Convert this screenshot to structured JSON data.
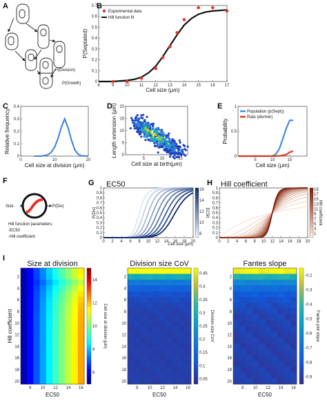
{
  "panels": {
    "A": {
      "label": "A",
      "division_label": "P(Division)",
      "growth_label": "P(Growth)"
    },
    "B": {
      "label": "B"
    },
    "C": {
      "label": "C"
    },
    "D": {
      "label": "D"
    },
    "E": {
      "label": "E"
    },
    "F": {
      "label": "F",
      "input": "Size",
      "output": "P(Div)",
      "params_title": "Hill function parameters:",
      "param1": "-EC50",
      "param2": "-Hill coefficient"
    },
    "G": {
      "label": "G"
    },
    "H": {
      "label": "H"
    },
    "I": {
      "label": "I"
    }
  },
  "colors": {
    "experimental": "#e8332a",
    "fit": "#111111",
    "gaussian": "#3b7ddd",
    "population": "#3b8fe0",
    "rate": "#d93a1b",
    "ec50_dark": "#0b2a6e",
    "hill_dark": "#7a1d08"
  },
  "chart_data": [
    {
      "id": "B",
      "type": "scatter",
      "xlabel": "Cell size (μm)",
      "ylabel": "P(Septated)",
      "xlim": [
        8,
        17
      ],
      "ylim": [
        0,
        0.7
      ],
      "xticks": [
        "8",
        "9",
        "10",
        "11",
        "12",
        "13",
        "14",
        "15",
        "16",
        "17"
      ],
      "yticks": [
        "0",
        "0.1",
        "0.2",
        "0.3",
        "0.4",
        "0.5",
        "0.6",
        "0.7"
      ],
      "legend_position": "top-left",
      "series": [
        {
          "name": "Experimental data",
          "x": [
            9,
            10,
            11,
            12,
            12.5,
            13,
            13.5,
            14,
            15,
            16,
            17
          ],
          "y": [
            0.0,
            0.0,
            0.03,
            0.12,
            0.22,
            0.32,
            0.45,
            0.57,
            0.68,
            0.68,
            0.65
          ]
        },
        {
          "name": "Hill function fit",
          "x": [
            8,
            9,
            10,
            10.5,
            11,
            11.5,
            12,
            12.5,
            13,
            13.5,
            14,
            14.5,
            15,
            15.5,
            16,
            17
          ],
          "y": [
            0,
            0.0,
            0.01,
            0.02,
            0.04,
            0.08,
            0.14,
            0.23,
            0.33,
            0.43,
            0.52,
            0.58,
            0.62,
            0.64,
            0.65,
            0.66
          ]
        }
      ]
    },
    {
      "id": "C",
      "type": "line",
      "xlabel": "Cell size at division (μm)",
      "ylabel": "Relative frequency",
      "xlim": [
        0,
        20
      ],
      "ylim": [
        0,
        0.4
      ],
      "xticks": [
        "0",
        "10",
        "20"
      ],
      "yticks": [
        "0",
        "0.1",
        "0.2",
        "0.3",
        "0.4"
      ],
      "series": [
        {
          "x": [
            4,
            6,
            8,
            9,
            10,
            11,
            12,
            13,
            14,
            15,
            16,
            17,
            18,
            20
          ],
          "y": [
            0,
            0,
            0.01,
            0.03,
            0.07,
            0.14,
            0.23,
            0.3,
            0.23,
            0.13,
            0.05,
            0.015,
            0.003,
            0
          ]
        }
      ]
    },
    {
      "id": "D",
      "type": "scatter",
      "xlabel": "Cell size at birth(μm)",
      "ylabel": "Length extension (μm)",
      "xlim": [
        0,
        17
      ],
      "ylim": [
        0,
        20
      ],
      "xticks": [
        "5",
        "10",
        "15"
      ],
      "yticks": [
        "0",
        "5",
        "10",
        "15",
        "20"
      ],
      "series": [
        {
          "x": [
            3,
            4,
            5,
            6,
            7,
            8,
            9,
            10,
            11,
            12,
            13,
            14,
            15
          ],
          "y": [
            14,
            12,
            11,
            10,
            9.5,
            8,
            7,
            6,
            5,
            4,
            3,
            2,
            1.5
          ]
        }
      ]
    },
    {
      "id": "E",
      "type": "line",
      "xlabel": "Cell size (μm)",
      "ylabel": "Probability",
      "xlim": [
        0,
        20
      ],
      "ylim": [
        0,
        1
      ],
      "xticks": [
        "5",
        "10",
        "15"
      ],
      "yticks": [
        "0",
        "0.5",
        "1"
      ],
      "legend_position": "top-left",
      "series": [
        {
          "name": "Population (p(Sept))",
          "x": [
            0,
            10,
            11,
            12,
            13,
            14,
            15,
            16
          ],
          "y": [
            0,
            0.0,
            0.04,
            0.15,
            0.35,
            0.56,
            0.72,
            0.72
          ]
        },
        {
          "name": "Rate (div/min)",
          "x": [
            0,
            10,
            12,
            13,
            14,
            15,
            16
          ],
          "y": [
            0,
            0,
            0.005,
            0.015,
            0.03,
            0.08,
            0.1
          ]
        }
      ]
    },
    {
      "id": "G",
      "type": "line",
      "title": "EC50",
      "ylabel": "P(Div)",
      "xlabel": "Cell size (μm)",
      "xlim": [
        0,
        20
      ],
      "ylim": [
        0,
        1
      ],
      "xticks": [
        "0",
        "2",
        "4",
        "6",
        "8",
        "10",
        "12",
        "14",
        "16",
        "18",
        "20"
      ],
      "yticks": [
        "0",
        "0.1",
        "0.2",
        "0.3",
        "0.4",
        "0.5",
        "0.6",
        "0.7",
        "0.8",
        "0.9",
        "1"
      ],
      "colorbar_label": "EC50",
      "colorbar_ticks": [
        "16",
        "14",
        "12",
        "10",
        "8"
      ],
      "ec50_values": [
        8,
        9,
        10,
        11,
        12,
        13,
        14,
        15,
        16
      ],
      "hill_coefficient": 10
    },
    {
      "id": "H",
      "type": "line",
      "title": "Hill coefficient",
      "xlim": [
        0,
        20
      ],
      "ylim": [
        0,
        1
      ],
      "xticks": [
        "0",
        "2",
        "4",
        "6",
        "8",
        "10",
        "12",
        "14",
        "16",
        "18",
        "20"
      ],
      "yticks": [
        "0",
        "0.1",
        "0.2",
        "0.3",
        "0.4",
        "0.5",
        "0.6",
        "0.7",
        "0.8",
        "0.9",
        "1"
      ],
      "colorbar_label": "Hill coefficient",
      "colorbar_ticks": [
        "19",
        "17",
        "15",
        "13",
        "11",
        "9",
        "7",
        "5",
        "3",
        "1"
      ],
      "ec50": 12,
      "hill_values": [
        1,
        2,
        3,
        4,
        5,
        6,
        7,
        8,
        9,
        10,
        11,
        12,
        13,
        14,
        15,
        16,
        17,
        18,
        19,
        20
      ]
    },
    {
      "id": "I1",
      "type": "heatmap",
      "title": "Size at division",
      "xlabel": "EC50",
      "ylabel": "Hill coefficient",
      "xticks": [
        "8",
        "10",
        "12",
        "14",
        "16"
      ],
      "yticks": [
        "2",
        "4",
        "6",
        "8",
        "10",
        "12",
        "14",
        "16",
        "18",
        "20"
      ],
      "colorbar_label": "Cell size at division (μm)",
      "colorbar_ticks": [
        "14",
        "12",
        "10",
        "8",
        "6"
      ],
      "zlim": [
        5,
        15
      ],
      "x": [
        7,
        8,
        9,
        10,
        11,
        12,
        13,
        14,
        15,
        16
      ],
      "y": [
        1,
        2,
        3,
        4,
        5,
        6,
        7,
        8,
        9,
        10,
        11,
        12,
        13,
        14,
        15,
        16,
        17,
        18,
        19,
        20
      ]
    },
    {
      "id": "I2",
      "type": "heatmap",
      "title": "Division size CoV",
      "xlabel": "EC50",
      "xticks": [
        "8",
        "10",
        "12",
        "14",
        "16"
      ],
      "yticks": [
        "2",
        "4",
        "6",
        "8",
        "10",
        "12",
        "14",
        "16",
        "18",
        "20"
      ],
      "colorbar_label": "Division size CoV",
      "colorbar_ticks": [
        "0.45",
        "0.4",
        "0.35",
        "0.3",
        "0.25",
        "0.2",
        "0.15",
        "0.1",
        "0.05"
      ],
      "zlim": [
        0.03,
        0.47
      ],
      "x": [
        7,
        8,
        9,
        10,
        11,
        12,
        13,
        14,
        15,
        16
      ],
      "y": [
        1,
        2,
        3,
        4,
        5,
        6,
        7,
        8,
        9,
        10,
        11,
        12,
        13,
        14,
        15,
        16,
        17,
        18,
        19,
        20
      ]
    },
    {
      "id": "I3",
      "type": "heatmap",
      "title": "Fantes slope",
      "xlabel": "EC50",
      "xticks": [
        "8",
        "10",
        "12",
        "14",
        "16"
      ],
      "yticks": [
        "2",
        "4",
        "6",
        "8",
        "10",
        "12",
        "14",
        "16",
        "18",
        "20"
      ],
      "colorbar_label": "Fantes plot slope",
      "colorbar_ticks": [
        "-0.2",
        "-0.3",
        "-0.4",
        "-0.5",
        "-0.6",
        "-0.7",
        "-0.8",
        "-0.9"
      ],
      "zlim": [
        -0.95,
        -0.15
      ],
      "x": [
        7,
        8,
        9,
        10,
        11,
        12,
        13,
        14,
        15,
        16
      ],
      "y": [
        1,
        2,
        3,
        4,
        5,
        6,
        7,
        8,
        9,
        10,
        11,
        12,
        13,
        14,
        15,
        16,
        17,
        18,
        19,
        20
      ]
    }
  ]
}
